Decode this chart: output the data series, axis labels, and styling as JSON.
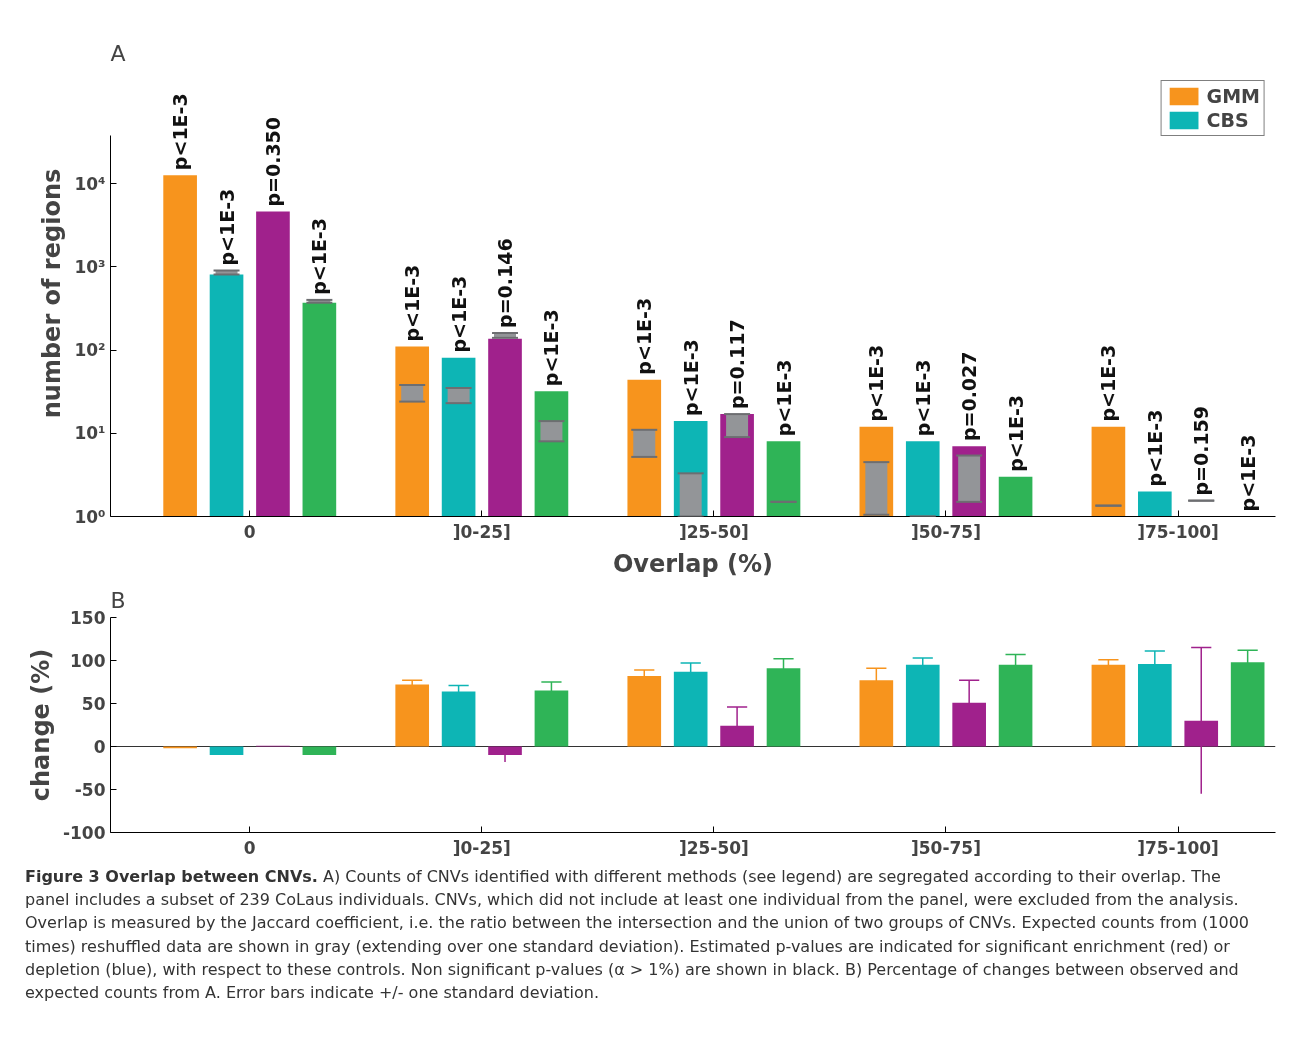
{
  "chart_data": [
    {
      "type": "bar",
      "title": "A",
      "xlabel": "Overlap (%)",
      "ylabel": "number of regions",
      "log": true,
      "legend": "top right",
      "categories": [
        "0",
        "]0-25]",
        "]25-50]",
        "]50-75]",
        "]75-100]"
      ],
      "ylim": [
        1,
        38000
      ],
      "yticks": [
        {
          "value": 1,
          "label": "10⁰"
        },
        {
          "value": 10,
          "label": "10¹"
        },
        {
          "value": 100,
          "label": "10²"
        },
        {
          "value": 1000,
          "label": "10³"
        },
        {
          "value": 10000,
          "label": "10⁴"
        }
      ],
      "series": [
        {
          "name": "GMM",
          "color": "#f7941d",
          "values": [
            12600,
            110,
            44,
            12,
            12
          ],
          "errors": [
            null,
            [
              24,
              38
            ],
            [
              5.2,
              11
            ],
            [
              1.05,
              4.5
            ],
            [
              1.35,
              1.35
            ]
          ]
        },
        {
          "name": "CBS",
          "color": "#0db5b5",
          "values": [
            810,
            81,
            14,
            8,
            2
          ],
          "errors": [
            [
              810,
              900
            ],
            [
              23,
              35
            ],
            [
              1,
              3.3
            ],
            [
              1,
              1
            ],
            null
          ]
        },
        {
          "color": "#a0218c",
          "values": [
            4600,
            137,
            17,
            7,
            1
          ],
          "errors": [
            null,
            [
              140,
              160
            ],
            [
              9,
              17
            ],
            [
              1.5,
              5.4
            ],
            [
              1.55,
              1.55
            ]
          ]
        },
        {
          "color": "#2fb457",
          "values": [
            370,
            32,
            8,
            3,
            1
          ],
          "errors": [
            [
              370,
              400
            ],
            [
              8,
              14
            ],
            [
              1.5,
              1.5
            ],
            null,
            null
          ]
        }
      ],
      "annotations": [
        "p<1E-3",
        "p<1E-3",
        "p=0.350",
        "p<1E-3",
        "p<1E-3",
        "p<1E-3",
        "p=0.146",
        "p<1E-3",
        "p<1E-3",
        "p<1E-3",
        "p=0.117",
        "p<1E-3",
        "p<1E-3",
        "p<1E-3",
        "p=0.027",
        "p<1E-3",
        "p<1E-3",
        "p<1E-3",
        "p=0.159",
        "p<1E-3"
      ]
    },
    {
      "type": "bar",
      "title": "B",
      "ylabel": "change (%)",
      "categories": [
        "0",
        "]0-25]",
        "]25-50]",
        "]50-75]",
        "]75-100]"
      ],
      "ylim": [
        -100,
        150
      ],
      "yticks": [
        -100,
        -50,
        0,
        50,
        100,
        150
      ],
      "series": [
        {
          "color": "#f7941d",
          "values": [
            -2,
            72,
            82,
            77,
            95
          ],
          "errors": [
            null,
            5,
            7,
            14,
            6
          ]
        },
        {
          "color": "#0db5b5",
          "values": [
            -10,
            64,
            87,
            95,
            96
          ],
          "errors": [
            null,
            7,
            10,
            8,
            15
          ]
        },
        {
          "color": "#a0218c",
          "values": [
            1,
            -10,
            24,
            51,
            30
          ],
          "errors": [
            null,
            8,
            22,
            26,
            85
          ]
        },
        {
          "color": "#2fb457",
          "values": [
            -10,
            65,
            91,
            95,
            98
          ],
          "errors": [
            null,
            10,
            11,
            12,
            14
          ]
        }
      ],
      "annotations": [
        "Figure 3 Overlap between CNVs.",
        "A) Counts of CNVs identified with different methods (see legend) are segregated according to their overlap. The panel includes a subset of 239 CoLaus individuals. CNVs, which did not include at least one individual from the panel, were excluded from the analysis. Overlap is measured by the Jaccard coefficient, i.e. the ratio between the intersection and the union of two groups of CNVs. Expected counts from (1000 times) reshuffled data are shown in gray (extending over one standard deviation). Estimated p-values are indicated for significant enrichment (red) or depletion (blue), with respect to these controls. Non significant p-values (α > 1%) are shown in black. B) Percentage of changes between observed and expected counts from A. Error bars indicate +/- one standard deviation."
      ]
    }
  ]
}
